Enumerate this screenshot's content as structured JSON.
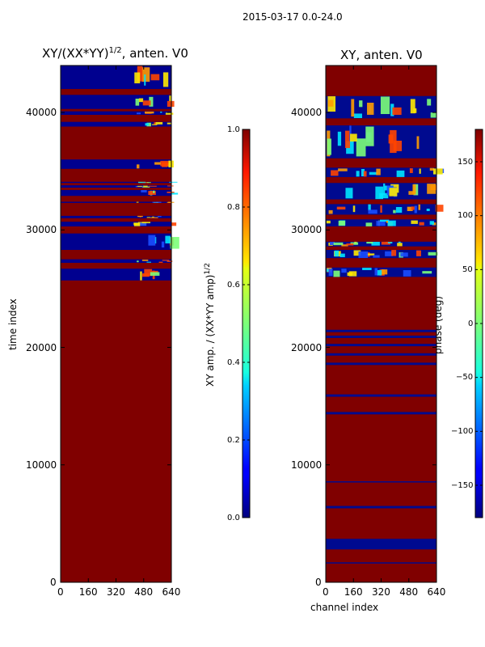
{
  "figure": {
    "suptitle": "2015-03-17 0.0-24.0"
  },
  "chart_data": [
    {
      "type": "heatmap",
      "title": "XY/(XX*YY)^{1/2}, anten. V0",
      "title_main": "XY/(XX*YY)",
      "title_sup": "1/2",
      "title_tail": ", anten. V0",
      "xlabel": "",
      "ylabel": "time index",
      "xlim": [
        0,
        640
      ],
      "ylim": [
        0,
        44000
      ],
      "xticks": [
        0,
        160,
        320,
        480,
        640
      ],
      "yticks": [
        0,
        10000,
        20000,
        30000,
        40000
      ],
      "xtick_labels": [
        "0",
        "160",
        "320",
        "480",
        "640"
      ],
      "ytick_labels": [
        "0",
        "10000",
        "20000",
        "30000",
        "40000"
      ],
      "fill_value": 1.0,
      "low_bands": [
        [
          25700,
          26700
        ],
        [
          27200,
          27500
        ],
        [
          28300,
          29700
        ],
        [
          30300,
          30700
        ],
        [
          31000,
          31200
        ],
        [
          32300,
          32400
        ],
        [
          32900,
          33400
        ],
        [
          33600,
          33800
        ],
        [
          34000,
          34100
        ],
        [
          35200,
          36000
        ],
        [
          38800,
          39200
        ],
        [
          39800,
          40100
        ],
        [
          40300,
          41500
        ],
        [
          42000,
          44000
        ]
      ],
      "colorbar": {
        "label_main": "XY amp. / (XX*YY amp)",
        "label_sup": "1/2",
        "range": [
          0.0,
          1.0
        ],
        "ticks": [
          0.0,
          0.2,
          0.4,
          0.6,
          0.8,
          1.0
        ],
        "tick_labels": [
          "0.0",
          "0.2",
          "0.4",
          "0.6",
          "0.8",
          "1.0"
        ]
      }
    },
    {
      "type": "heatmap",
      "title": "XY, anten. V0",
      "xlabel": "channel index",
      "ylabel": "",
      "xlim": [
        0,
        640
      ],
      "ylim": [
        0,
        44000
      ],
      "xticks": [
        0,
        160,
        320,
        480,
        640
      ],
      "yticks": [
        0,
        10000,
        20000,
        30000,
        40000
      ],
      "xtick_labels": [
        "0",
        "160",
        "320",
        "480",
        "640"
      ],
      "ytick_labels": [
        "0",
        "10000",
        "20000",
        "30000",
        "40000"
      ],
      "fill_value": 180,
      "low_bands": [
        [
          2800,
          3700
        ],
        [
          1600,
          1700
        ],
        [
          6300,
          6500
        ],
        [
          8500,
          8600
        ],
        [
          14300,
          14500
        ],
        [
          15800,
          16000
        ],
        [
          18500,
          18700
        ],
        [
          19300,
          19500
        ],
        [
          20100,
          20300
        ],
        [
          20800,
          21000
        ],
        [
          21300,
          21500
        ],
        [
          26000,
          26800
        ],
        [
          27600,
          28300
        ],
        [
          28600,
          29000
        ],
        [
          30300,
          30900
        ],
        [
          31300,
          32200
        ],
        [
          32600,
          34000
        ],
        [
          34500,
          35300
        ],
        [
          36100,
          38900
        ],
        [
          39500,
          41400
        ]
      ],
      "colorbar": {
        "label_main": "phase (deg)",
        "range": [
          -180,
          180
        ],
        "ticks": [
          -150,
          -100,
          -50,
          0,
          50,
          100,
          150
        ],
        "tick_labels": [
          "−150",
          "−100",
          "−50",
          "0",
          "50",
          "100",
          "150"
        ]
      }
    }
  ]
}
